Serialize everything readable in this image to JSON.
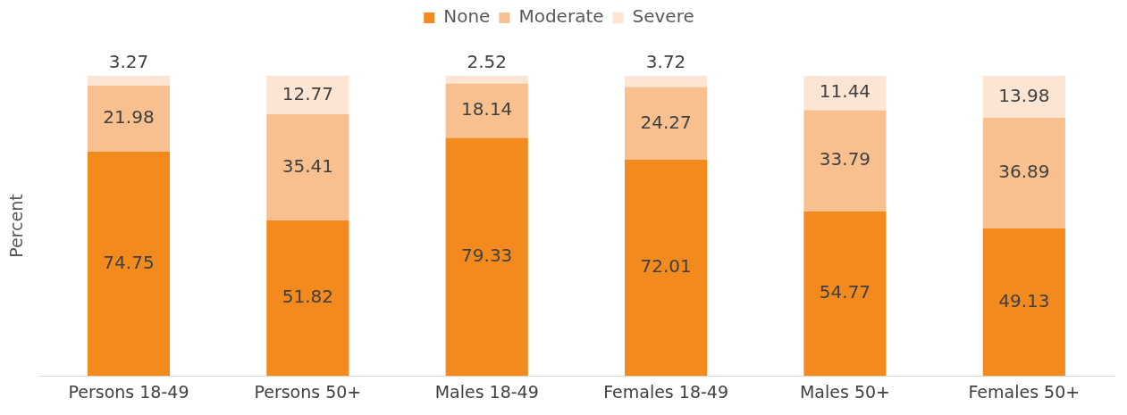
{
  "chart_data": {
    "type": "bar",
    "stacked": true,
    "ylabel": "Percent",
    "legend": "top",
    "data_labels": true,
    "grid": false,
    "ylim": [
      0,
      100
    ],
    "tick_labels": "x",
    "categories": [
      "Persons 18-49",
      "Persons 50+",
      "Males 18-49",
      "Females 18-49",
      "Males 50+",
      "Females 50+"
    ],
    "series": [
      {
        "name": "None",
        "color": "#f28a1e",
        "values": [
          74.75,
          51.82,
          79.33,
          72.01,
          54.77,
          49.13
        ]
      },
      {
        "name": "Moderate",
        "color": "#f8c08f",
        "values": [
          21.98,
          35.41,
          18.14,
          24.27,
          33.79,
          36.89
        ]
      },
      {
        "name": "Severe",
        "color": "#fde5d4",
        "values": [
          3.27,
          12.77,
          2.52,
          3.72,
          11.44,
          13.98
        ]
      }
    ]
  }
}
